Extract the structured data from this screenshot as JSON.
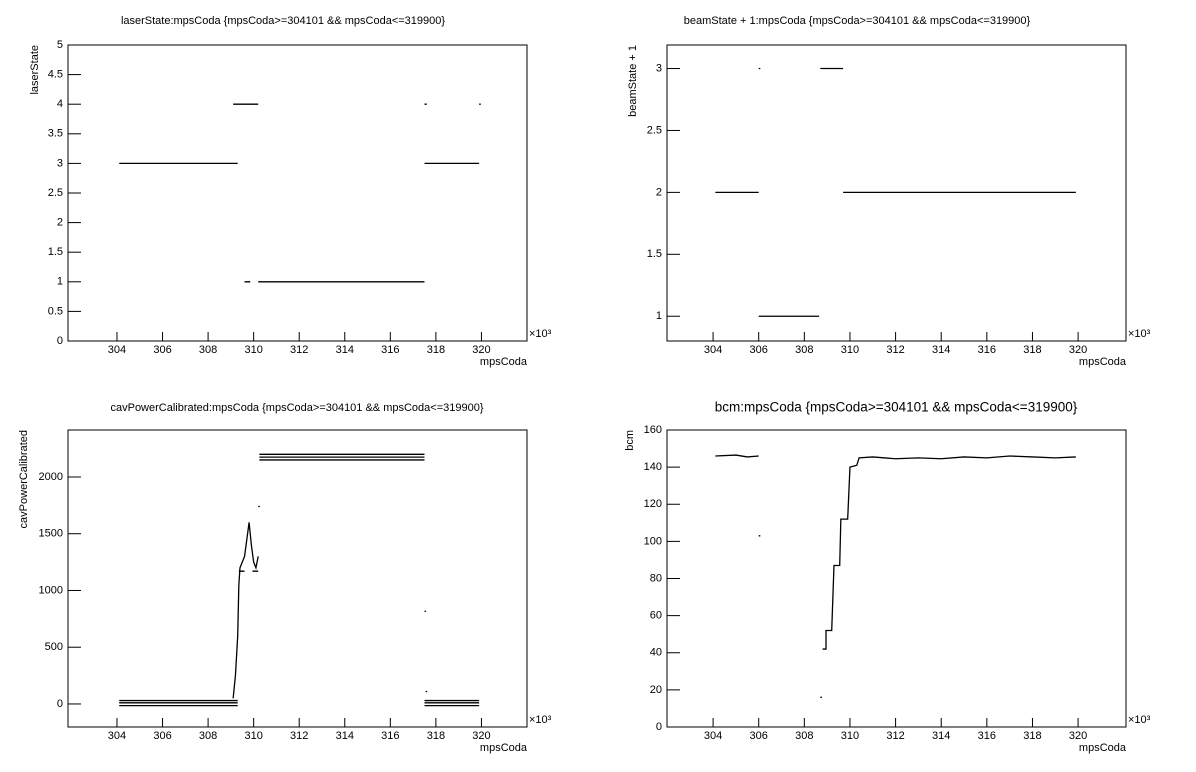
{
  "chart_data": [
    {
      "type": "line",
      "title": "laserState:mpsCoda {mpsCoda>=304101 && mpsCoda<=319900}",
      "xlabel": "mpsCoda",
      "ylabel": "laserState",
      "x_multiplier": "×10³",
      "x": [
        304.1,
        309.3,
        null,
        309.1,
        310.2,
        null,
        309.6,
        309.85,
        null,
        310.2,
        317.5,
        null,
        317.5,
        317.6,
        null,
        319.9,
        null,
        317.5,
        319.9
      ],
      "series": [
        {
          "color": "#000000",
          "values": [
            3,
            3,
            null,
            4,
            4,
            null,
            1,
            1,
            null,
            1,
            1,
            null,
            4,
            4,
            null,
            4,
            null,
            3,
            3
          ]
        }
      ],
      "xlim": [
        301.85,
        322.0
      ],
      "xticks": [
        304,
        306,
        308,
        310,
        312,
        314,
        316,
        318,
        320
      ],
      "ylim": [
        0,
        5
      ],
      "yticks": [
        0,
        0.5,
        1,
        1.5,
        2,
        2.5,
        3,
        3.5,
        4,
        4.5,
        5
      ]
    },
    {
      "type": "line",
      "title": "beamState + 1:mpsCoda {mpsCoda>=304101 && mpsCoda<=319900}",
      "xlabel": "mpsCoda",
      "ylabel": "beamState + 1",
      "x_multiplier": "×10³",
      "x": [
        304.1,
        306.0,
        null,
        306.0,
        null,
        306.0,
        308.65,
        null,
        308.7,
        309.7,
        null,
        309.7,
        319.9
      ],
      "series": [
        {
          "color": "#000000",
          "values": [
            2,
            2,
            null,
            3,
            null,
            1,
            1,
            null,
            3,
            3,
            null,
            2,
            2
          ]
        }
      ],
      "xlim": [
        301.98,
        322.1
      ],
      "xticks": [
        304,
        306,
        308,
        310,
        312,
        314,
        316,
        318,
        320
      ],
      "ylim": [
        0.8,
        3.19
      ],
      "yticks": [
        1,
        1.5,
        2,
        2.5,
        3
      ]
    },
    {
      "type": "line",
      "title": "cavPowerCalibrated:mpsCoda {mpsCoda>=304101 && mpsCoda<=319900}",
      "xlabel": "mpsCoda",
      "ylabel": "cavPowerCalibrated",
      "x_multiplier": "×10³",
      "x": [
        304.1,
        309.3,
        null,
        304.1,
        309.3,
        null,
        304.1,
        309.3,
        null,
        309.1,
        309.2,
        309.3,
        309.35,
        309.4,
        309.5,
        309.6,
        309.7,
        309.8,
        309.9,
        310.0,
        310.1,
        310.2,
        null,
        309.35,
        309.6,
        null,
        309.95,
        310.2,
        null,
        310.2,
        null,
        310.25,
        317.5,
        null,
        310.25,
        317.5,
        null,
        310.25,
        317.5,
        null,
        317.5,
        null,
        317.55,
        null,
        317.5,
        319.9,
        null,
        317.5,
        319.9,
        null,
        317.5,
        319.9
      ],
      "series": [
        {
          "color": "#000000",
          "values": [
            30,
            30,
            null,
            10,
            10,
            null,
            -15,
            -15,
            null,
            50,
            250,
            600,
            1050,
            1200,
            1250,
            1300,
            1450,
            1600,
            1400,
            1250,
            1200,
            1300,
            null,
            1170,
            1170,
            null,
            1170,
            1170,
            null,
            1740,
            null,
            2200,
            2200,
            null,
            2175,
            2175,
            null,
            2150,
            2150,
            null,
            817,
            null,
            110,
            null,
            30,
            30,
            null,
            10,
            10,
            null,
            -15,
            -15
          ]
        }
      ],
      "xlim": [
        301.85,
        322.0
      ],
      "xticks": [
        304,
        306,
        308,
        310,
        312,
        314,
        316,
        318,
        320
      ],
      "ylim": [
        -203,
        2414
      ],
      "yticks": [
        0,
        500,
        1000,
        1500,
        2000
      ]
    },
    {
      "type": "line",
      "title": "bcm:mpsCoda {mpsCoda>=304101 && mpsCoda<=319900}",
      "xlabel": "mpsCoda",
      "ylabel": "bcm",
      "x_multiplier": "×10³",
      "x": [
        304.1,
        305,
        305.5,
        306,
        null,
        306,
        null,
        308.7,
        null,
        308.8,
        308.95,
        308.95,
        309.2,
        309.3,
        309.55,
        309.6,
        309.9,
        310,
        310.3,
        310.4,
        311,
        312,
        313,
        314,
        315,
        316,
        317,
        318,
        319,
        319.9
      ],
      "series": [
        {
          "color": "#000000",
          "values": [
            146,
            146.5,
            145.5,
            146,
            null,
            103,
            null,
            16,
            null,
            42,
            42,
            52,
            52,
            87,
            87,
            112,
            112,
            140,
            141,
            145,
            145.5,
            144.5,
            145,
            144.5,
            145.5,
            145,
            146,
            145.5,
            145,
            145.5
          ]
        }
      ],
      "xlim": [
        301.98,
        322.1
      ],
      "xticks": [
        304,
        306,
        308,
        310,
        312,
        314,
        316,
        318,
        320
      ],
      "ylim": [
        0,
        160
      ],
      "yticks": [
        0,
        20,
        40,
        60,
        80,
        100,
        120,
        140,
        160
      ]
    }
  ]
}
